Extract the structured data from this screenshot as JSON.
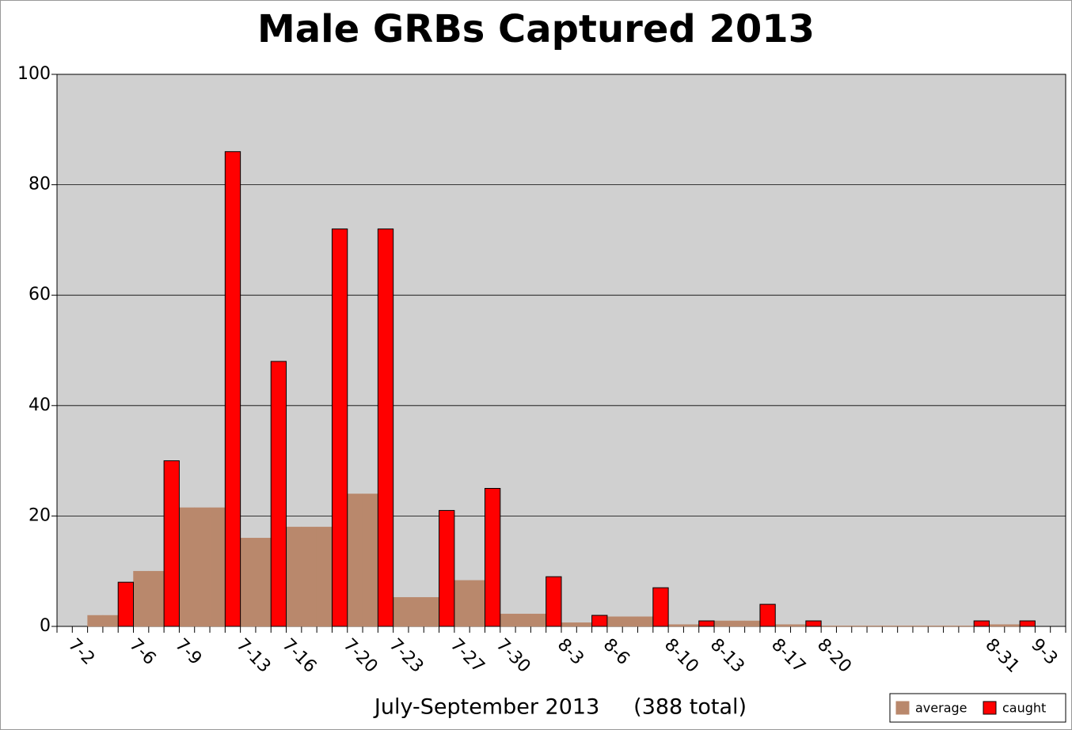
{
  "chart_data": {
    "type": "bar",
    "title": "Male GRBs Captured 2013",
    "x_label": "July-September 2013     (388 total)",
    "categories": [
      "7-2",
      null,
      null,
      null,
      "7-6",
      null,
      null,
      "7-9",
      null,
      null,
      null,
      "7-13",
      null,
      null,
      "7-16",
      null,
      null,
      null,
      "7-20",
      null,
      null,
      "7-23",
      null,
      null,
      null,
      "7-27",
      null,
      null,
      "7-30",
      null,
      null,
      null,
      "8-3",
      null,
      null,
      "8-6",
      null,
      null,
      null,
      "8-10",
      null,
      null,
      "8-13",
      null,
      null,
      null,
      "8-17",
      null,
      null,
      "8-20",
      null,
      null,
      null,
      null,
      null,
      null,
      null,
      null,
      null,
      null,
      "8-31",
      null,
      null,
      "9-3",
      null,
      null
    ],
    "series": [
      {
        "name": "average",
        "color": "#b9886c",
        "values": [
          0,
          0,
          2,
          2,
          2,
          10,
          10,
          10,
          21.5,
          21.5,
          21.5,
          21.5,
          16,
          16,
          16,
          18,
          18,
          18,
          18,
          24,
          24,
          24,
          5.25,
          5.25,
          5.25,
          5.25,
          8.33,
          8.33,
          8.33,
          2.25,
          2.25,
          2.25,
          2.25,
          0.67,
          0.67,
          0.67,
          1.75,
          1.75,
          1.75,
          1.75,
          0.33,
          0.33,
          0.33,
          1,
          1,
          1,
          1,
          0.33,
          0.33,
          0.33,
          0.09,
          0.09,
          0.09,
          0.09,
          0.09,
          0.09,
          0.09,
          0.09,
          0.09,
          0.09,
          0.09,
          0.33,
          0.33,
          0.33,
          0,
          0
        ]
      },
      {
        "name": "caught",
        "color": "#ff0000",
        "values": [
          0,
          0,
          0,
          0,
          8,
          0,
          0,
          30,
          0,
          0,
          0,
          86,
          0,
          0,
          48,
          0,
          0,
          0,
          72,
          0,
          0,
          72,
          0,
          0,
          0,
          21,
          0,
          0,
          25,
          0,
          0,
          0,
          9,
          0,
          0,
          2,
          0,
          0,
          0,
          7,
          0,
          0,
          1,
          0,
          0,
          0,
          4,
          0,
          0,
          1,
          0,
          0,
          0,
          0,
          0,
          0,
          0,
          0,
          0,
          0,
          1,
          0,
          0,
          1,
          0,
          0
        ]
      }
    ],
    "ylim": [
      0,
      100
    ],
    "yticks": [
      0,
      20,
      40,
      60,
      80,
      100
    ],
    "grid": true,
    "legend": "lower right"
  }
}
